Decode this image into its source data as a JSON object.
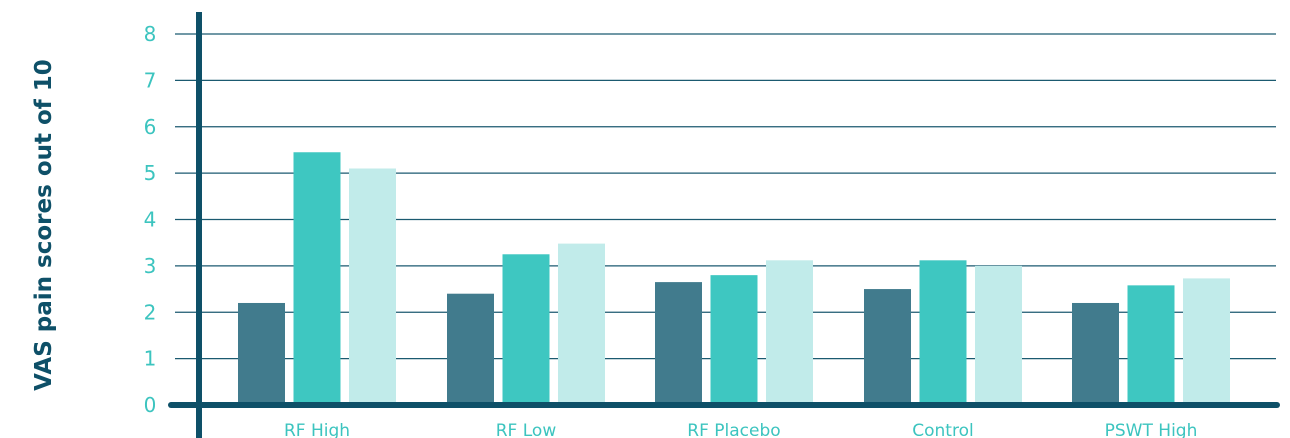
{
  "chart_data": {
    "type": "bar",
    "title": "",
    "xlabel": "",
    "ylabel": "VAS pain scores out of 10",
    "ylim": [
      0,
      8
    ],
    "yticks": [
      0,
      1,
      2,
      3,
      4,
      5,
      6,
      7,
      8
    ],
    "grid": true,
    "categories": [
      "RF High",
      "RF Low",
      "RF Placebo",
      "Control",
      "PSWT High"
    ],
    "series": [
      {
        "values": [
          2.2,
          2.4,
          2.65,
          2.5,
          2.2
        ]
      },
      {
        "values": [
          5.45,
          3.25,
          2.8,
          3.12,
          2.58
        ]
      },
      {
        "values": [
          5.1,
          3.48,
          3.12,
          3.0,
          2.73
        ]
      }
    ],
    "colors": {
      "series": [
        "#417b8d",
        "#3ec7c1",
        "#c1ebea"
      ],
      "axis": "#0e5068",
      "grid": "#1b5a70",
      "tick_text": "#3cc4bf"
    }
  }
}
